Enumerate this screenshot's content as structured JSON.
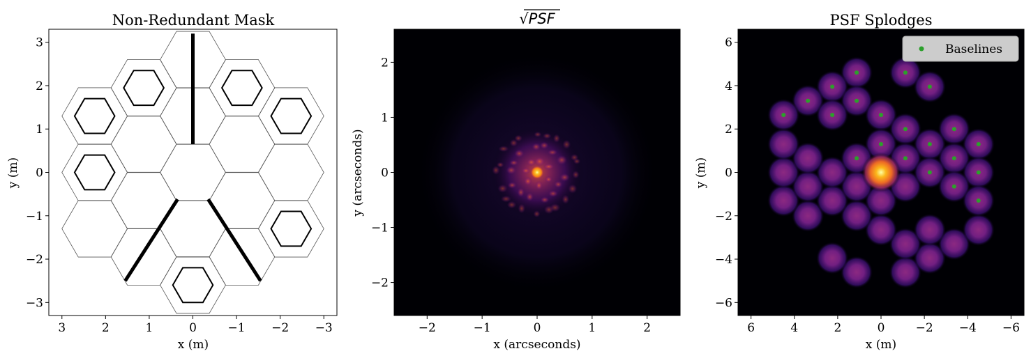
{
  "chart_data": [
    {
      "type": "diagram",
      "title": "Non-Redundant Mask",
      "xlabel": "x (m)",
      "ylabel": "y (m)",
      "xlim": [
        3.3,
        -3.3
      ],
      "ylim": [
        -3.3,
        3.3
      ],
      "xticks": [
        3,
        2,
        1,
        0,
        -1,
        -2,
        -3
      ],
      "yticks": [
        -3,
        -2,
        -1,
        0,
        1,
        2,
        3
      ],
      "hex_grid": {
        "outline_color": "#555555",
        "cells": [
          [
            0,
            0
          ],
          [
            0,
            1.2990381
          ],
          [
            0,
            2.5980762
          ],
          [
            0,
            -1.2990381
          ],
          [
            0,
            -2.5980762
          ],
          [
            1.125,
            0.649519
          ],
          [
            1.125,
            1.9485572
          ],
          [
            1.125,
            -0.649519
          ],
          [
            1.125,
            -1.9485572
          ],
          [
            -1.125,
            0.649519
          ],
          [
            -1.125,
            1.9485572
          ],
          [
            -1.125,
            -0.649519
          ],
          [
            -1.125,
            -1.9485572
          ],
          [
            2.25,
            0
          ],
          [
            2.25,
            1.2990381
          ],
          [
            2.25,
            -1.2990381
          ],
          [
            -2.25,
            0
          ],
          [
            -2.25,
            1.2990381
          ],
          [
            -2.25,
            -1.2990381
          ]
        ]
      },
      "open_holes": [
        [
          1.125,
          1.9485572
        ],
        [
          -1.125,
          1.9485572
        ],
        [
          2.25,
          1.2990381
        ],
        [
          -2.25,
          1.2990381
        ],
        [
          2.25,
          0
        ],
        [
          -2.25,
          -1.2990381
        ],
        [
          0,
          -2.5980762
        ]
      ],
      "spiders": [
        [
          [
            0,
            3.2
          ],
          [
            0,
            0.65
          ]
        ],
        [
          [
            0.35,
            -0.62
          ],
          [
            1.55,
            -2.5
          ]
        ],
        [
          [
            -0.35,
            -0.62
          ],
          [
            -1.55,
            -2.5
          ]
        ]
      ]
    },
    {
      "type": "heatmap",
      "title": "√PSF",
      "title_main": "PSF",
      "title_radical": "√",
      "xlabel": "x (arcseconds)",
      "ylabel": "y (arcseconds)",
      "xlim": [
        -2.6,
        2.6
      ],
      "ylim": [
        -2.6,
        2.6
      ],
      "xticks": [
        -2,
        -1,
        0,
        1,
        2
      ],
      "yticks": [
        -2,
        -1,
        0,
        1,
        2
      ],
      "colormap": "inferno",
      "peak": [
        0,
        0
      ],
      "peak_value": 1.0,
      "halo_radius": 0.85
    },
    {
      "type": "heatmap",
      "title": "PSF Splodges",
      "xlabel": "x (m)",
      "ylabel": "y (m)",
      "xlim": [
        6.6,
        -6.6
      ],
      "ylim": [
        -6.6,
        6.6
      ],
      "xticks": [
        6,
        4,
        2,
        0,
        -2,
        -4,
        -6
      ],
      "yticks": [
        -6,
        -4,
        -2,
        0,
        2,
        4,
        6
      ],
      "colormap": "inferno",
      "legend": {
        "label": "Baselines",
        "placement": "upper right",
        "marker_color": "#2ca02c"
      },
      "central_peak": [
        0,
        0
      ],
      "baselines": [
        [
          1.125,
          4.6
        ],
        [
          -1.125,
          4.6
        ],
        [
          2.25,
          3.95
        ],
        [
          -2.25,
          3.95
        ],
        [
          3.375,
          3.3
        ],
        [
          1.125,
          3.3
        ],
        [
          4.5,
          2.65
        ],
        [
          2.25,
          2.65
        ],
        [
          0,
          2.65
        ],
        [
          -1.125,
          2.0
        ],
        [
          -3.375,
          2.0
        ],
        [
          0,
          1.3
        ],
        [
          -2.25,
          1.3
        ],
        [
          -4.5,
          1.3
        ],
        [
          1.125,
          0.65
        ],
        [
          -1.125,
          0.65
        ],
        [
          -3.375,
          0.65
        ],
        [
          -2.25,
          0
        ],
        [
          -4.5,
          0
        ],
        [
          -3.375,
          -0.65
        ],
        [
          -4.5,
          -1.3
        ]
      ],
      "mirror_splodges": [
        [
          -1.125,
          -4.6
        ],
        [
          1.125,
          -4.6
        ],
        [
          -2.25,
          -3.95
        ],
        [
          2.25,
          -3.95
        ],
        [
          -3.375,
          -3.3
        ],
        [
          -1.125,
          -3.3
        ],
        [
          -4.5,
          -2.65
        ],
        [
          -2.25,
          -2.65
        ],
        [
          0,
          -2.65
        ],
        [
          1.125,
          -2.0
        ],
        [
          3.375,
          -2.0
        ],
        [
          0,
          -1.3
        ],
        [
          2.25,
          -1.3
        ],
        [
          4.5,
          -1.3
        ],
        [
          -1.125,
          -0.65
        ],
        [
          1.125,
          -0.65
        ],
        [
          3.375,
          -0.65
        ],
        [
          2.25,
          0
        ],
        [
          4.5,
          0
        ],
        [
          3.375,
          0.65
        ],
        [
          4.5,
          1.3
        ]
      ]
    }
  ]
}
